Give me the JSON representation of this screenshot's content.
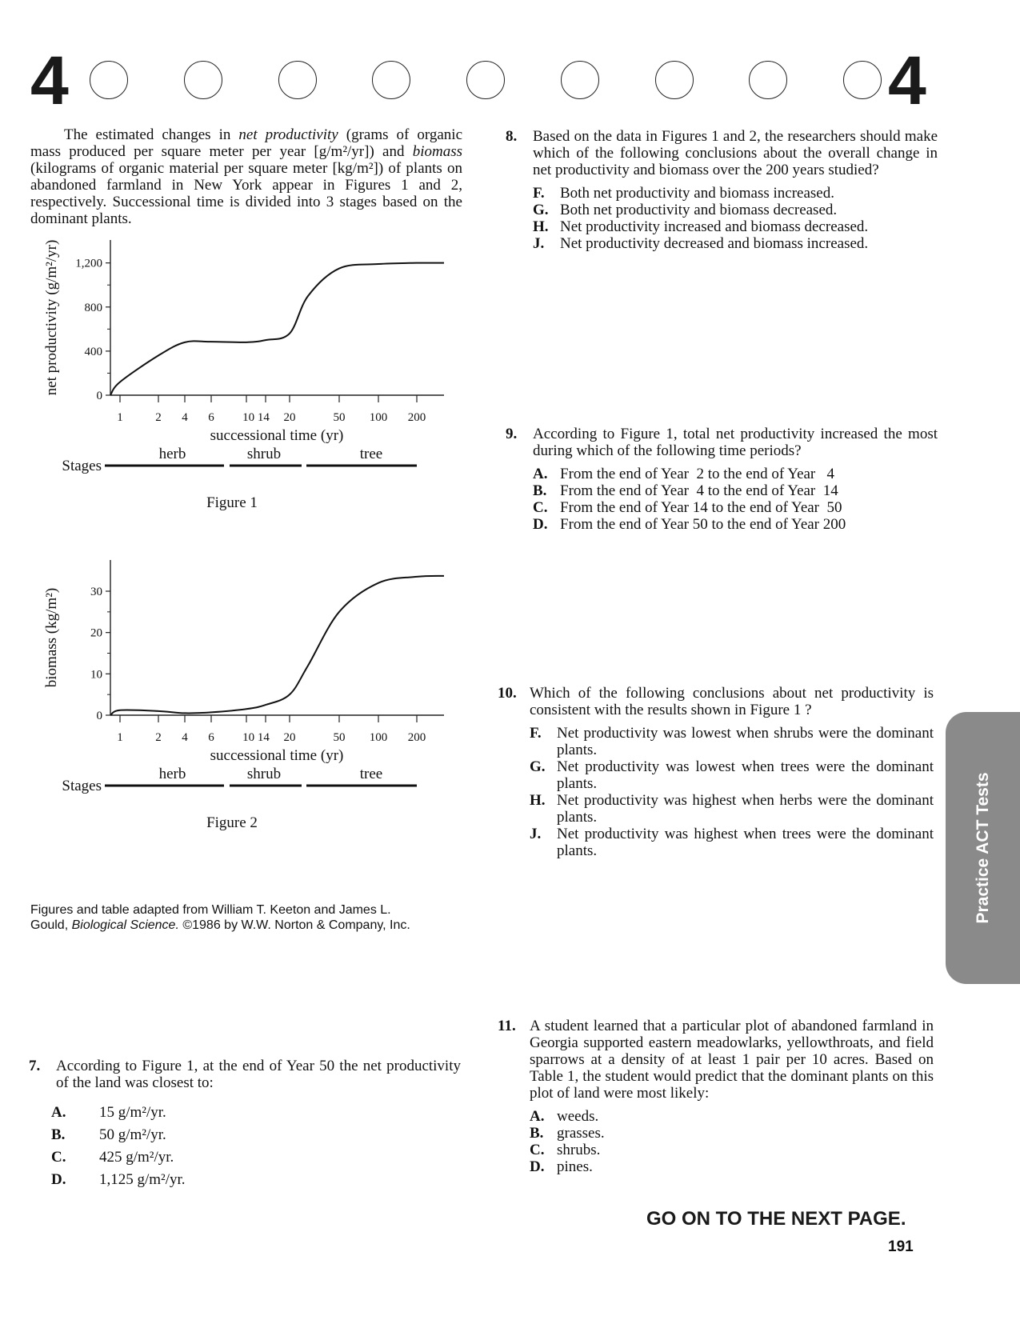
{
  "header": {
    "section_left": "4",
    "section_right": "4",
    "circle_count": 9
  },
  "intro": {
    "part1": "The estimated changes in ",
    "term1": "net productivity",
    "part2": " (grams of organic mass produced per square meter per year [g/m²/yr]) and ",
    "term2": "biomass",
    "part3": " (kilograms of organic material per square meter [kg/m²]) of plants on abandoned farmland in New York appear in Figures 1 and 2, respectively. Successional time is divided into 3 stages based on the dominant plants."
  },
  "chart_data": [
    {
      "type": "line",
      "caption": "Figure 1",
      "ylabel": "net productivity (g/m²/yr)",
      "xlabel": "successional time (yr)",
      "x_ticks": [
        "1",
        "2",
        "4",
        "6",
        "10",
        "14",
        "20",
        "50",
        "100",
        "200"
      ],
      "x_tick_label_text": [
        "1",
        "2",
        "4",
        "6",
        "10 14",
        "20",
        "50",
        "100",
        "200"
      ],
      "y_ticks": [
        "0",
        "400",
        "800",
        "1,200"
      ],
      "ylim": [
        0,
        1350
      ],
      "series": [
        {
          "x": [
            0,
            1,
            2,
            4,
            6,
            10,
            14,
            20,
            30,
            50,
            100,
            200,
            300
          ],
          "y": [
            0,
            120,
            360,
            480,
            485,
            480,
            500,
            560,
            900,
            1150,
            1190,
            1200,
            1200
          ]
        }
      ],
      "stages_label": "Stages",
      "stages": [
        {
          "name": "herb",
          "from": "1",
          "to": "6"
        },
        {
          "name": "shrub",
          "from": "6",
          "to": "20"
        },
        {
          "name": "tree",
          "from": "20",
          "to": "200"
        }
      ]
    },
    {
      "type": "line",
      "caption": "Figure 2",
      "ylabel": "biomass (kg/m²)",
      "xlabel": "successional time (yr)",
      "x_ticks": [
        "1",
        "2",
        "4",
        "6",
        "10",
        "14",
        "20",
        "50",
        "100",
        "200"
      ],
      "x_tick_label_text": [
        "1",
        "2",
        "4",
        "6",
        "10 14",
        "20",
        "50",
        "100",
        "200"
      ],
      "y_ticks": [
        "0",
        "10",
        "20",
        "30"
      ],
      "ylim": [
        0,
        36
      ],
      "series": [
        {
          "x": [
            0,
            1,
            2,
            4,
            6,
            10,
            14,
            20,
            30,
            50,
            100,
            200,
            300
          ],
          "y": [
            0,
            1.2,
            1,
            0.5,
            0.7,
            1.5,
            2.5,
            5,
            12,
            25,
            32,
            33.5,
            33.7
          ]
        }
      ],
      "stages_label": "Stages",
      "stages": [
        {
          "name": "herb",
          "from": "1",
          "to": "6"
        },
        {
          "name": "shrub",
          "from": "6",
          "to": "20"
        },
        {
          "name": "tree",
          "from": "20",
          "to": "200"
        }
      ]
    }
  ],
  "credit": {
    "line1": "Figures and table adapted from William T. Keeton and James L.",
    "line2a": "Gould, ",
    "title": "Biological Science.",
    "line2b": " ©1986 by W.W. Norton & Company, Inc."
  },
  "questions": {
    "q7": {
      "number": "7.",
      "text": "According to Figure 1, at the end of Year 50 the net productivity of the land was closest to:",
      "options": [
        {
          "letter": "A.",
          "text": "15 g/m²/yr."
        },
        {
          "letter": "B.",
          "text": "50 g/m²/yr."
        },
        {
          "letter": "C.",
          "text": "425 g/m²/yr."
        },
        {
          "letter": "D.",
          "text": "1,125 g/m²/yr."
        }
      ]
    },
    "q8": {
      "number": "8.",
      "text": "Based on the data in Figures 1 and 2, the researchers should make which of the following conclusions about the overall change in net productivity and biomass over the 200 years studied?",
      "options": [
        {
          "letter": "F.",
          "text": "Both net productivity and biomass increased."
        },
        {
          "letter": "G.",
          "text": "Both net productivity and biomass decreased."
        },
        {
          "letter": "H.",
          "text": "Net productivity increased and biomass decreased."
        },
        {
          "letter": "J.",
          "text": "Net productivity decreased and biomass increased."
        }
      ]
    },
    "q9": {
      "number": "9.",
      "text": "According to Figure 1, total net productivity increased the most during which of the following time periods?",
      "options": [
        {
          "letter": "A.",
          "text": "From the end of Year  2 to the end of Year   4"
        },
        {
          "letter": "B.",
          "text": "From the end of Year  4 to the end of Year  14"
        },
        {
          "letter": "C.",
          "text": "From the end of Year 14 to the end of Year  50"
        },
        {
          "letter": "D.",
          "text": "From the end of Year 50 to the end of Year 200"
        }
      ]
    },
    "q10": {
      "number": "10.",
      "text": "Which of the following conclusions about net productivity is consistent with the results shown in Figure 1 ?",
      "options": [
        {
          "letter": "F.",
          "text": "Net productivity was lowest when shrubs were the dominant plants."
        },
        {
          "letter": "G.",
          "text": "Net productivity was lowest when trees were the dominant plants."
        },
        {
          "letter": "H.",
          "text": "Net productivity was highest when herbs were the dominant plants."
        },
        {
          "letter": "J.",
          "text": "Net productivity was highest when trees were the dominant plants."
        }
      ]
    },
    "q11": {
      "number": "11.",
      "text": "A student learned that a particular plot of abandoned farmland in Georgia supported eastern meadowlarks, yellowthroats, and field sparrows at a density of at least 1 pair per 10 acres. Based on Table 1, the student would predict that the dominant plants on this plot of land were most likely:",
      "options": [
        {
          "letter": "A.",
          "text": "weeds."
        },
        {
          "letter": "B.",
          "text": "grasses."
        },
        {
          "letter": "C.",
          "text": "shrubs."
        },
        {
          "letter": "D.",
          "text": "pines."
        }
      ]
    }
  },
  "side_tab": {
    "label": "Practice ACT Tests"
  },
  "footer": {
    "go_on": "GO ON TO THE NEXT PAGE.",
    "page_number": "191"
  }
}
